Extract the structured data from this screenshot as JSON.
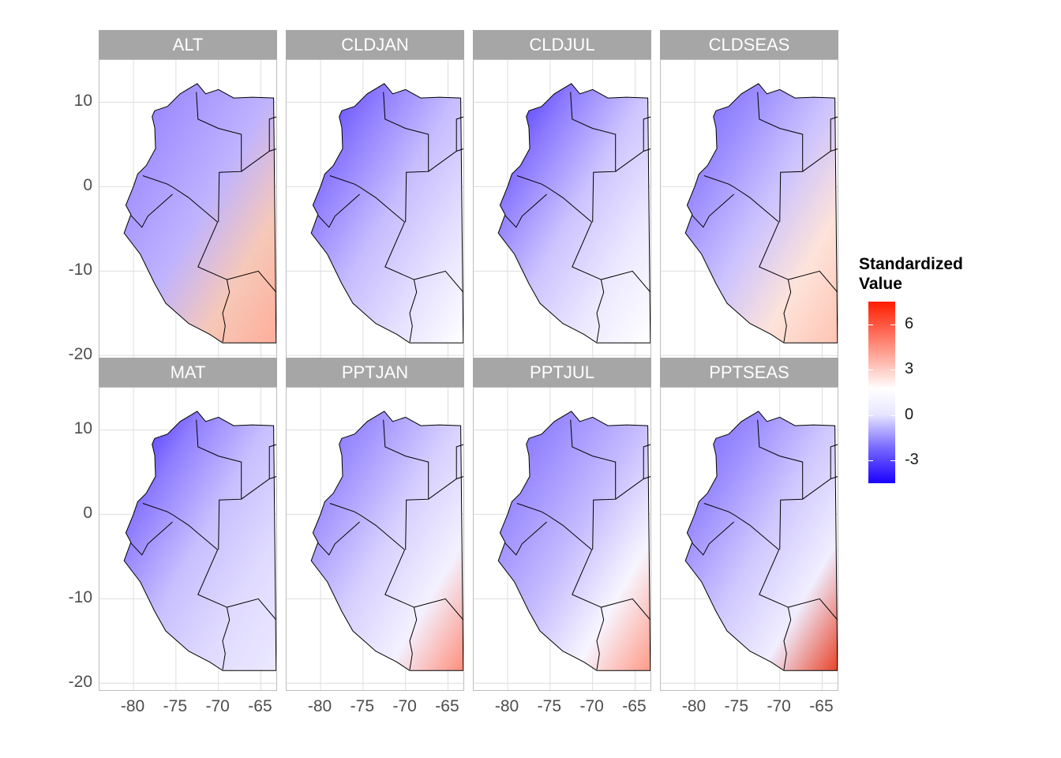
{
  "panels": [
    {
      "label": "ALT",
      "colors": [
        "#8a78ff",
        "#a796ff",
        "#bfb3ff",
        "#f6c8b8",
        "#ffae9a"
      ]
    },
    {
      "label": "CLDJAN",
      "colors": [
        "#4b33ff",
        "#8f7dff",
        "#c6bcff",
        "#e5e0ff",
        "#ffffff"
      ]
    },
    {
      "label": "CLDJUL",
      "colors": [
        "#3a21ff",
        "#8d7bff",
        "#cdc4ff",
        "#ece9ff",
        "#ffffff"
      ]
    },
    {
      "label": "CLDSEAS",
      "colors": [
        "#7060ff",
        "#9b8cff",
        "#cbc2ff",
        "#fde3da",
        "#ffc4b3"
      ]
    },
    {
      "label": "MAT",
      "colors": [
        "#3118ff",
        "#8f7dff",
        "#c8bfff",
        "#e0dbff",
        "#ebe8ff"
      ]
    },
    {
      "label": "PPTJAN",
      "colors": [
        "#7463ff",
        "#a597ff",
        "#d7d0ff",
        "#f3f1ff",
        "#ff8f7c"
      ]
    },
    {
      "label": "PPTJUL",
      "colors": [
        "#7463ff",
        "#9e8fff",
        "#c6bcff",
        "#f7f5ff",
        "#ff9a87"
      ]
    },
    {
      "label": "PPTSEAS",
      "colors": [
        "#7463ff",
        "#9c8dff",
        "#cfc7ff",
        "#f0eeff",
        "#e8442a"
      ]
    }
  ],
  "axes": {
    "y_ticks": [
      "10",
      "0",
      "-10",
      "-20"
    ],
    "x_ticks": [
      "-80",
      "-75",
      "-70",
      "-65"
    ],
    "y_values": [
      10,
      0,
      -10,
      -20
    ],
    "x_values": [
      -80,
      -75,
      -70,
      -65
    ],
    "x_range": [
      -84,
      -63
    ],
    "y_range": [
      -21,
      15
    ]
  },
  "legend": {
    "title_line1": "Standardized",
    "title_line2": "Value",
    "ticks": [
      "6",
      "3",
      "0",
      "-3"
    ],
    "tick_values": [
      6,
      3,
      0,
      -3
    ],
    "range": [
      -4.5,
      7.5
    ],
    "colors": {
      "low": "#1a00ff",
      "mid": "#ffffff",
      "high": "#ff1c00"
    }
  }
}
